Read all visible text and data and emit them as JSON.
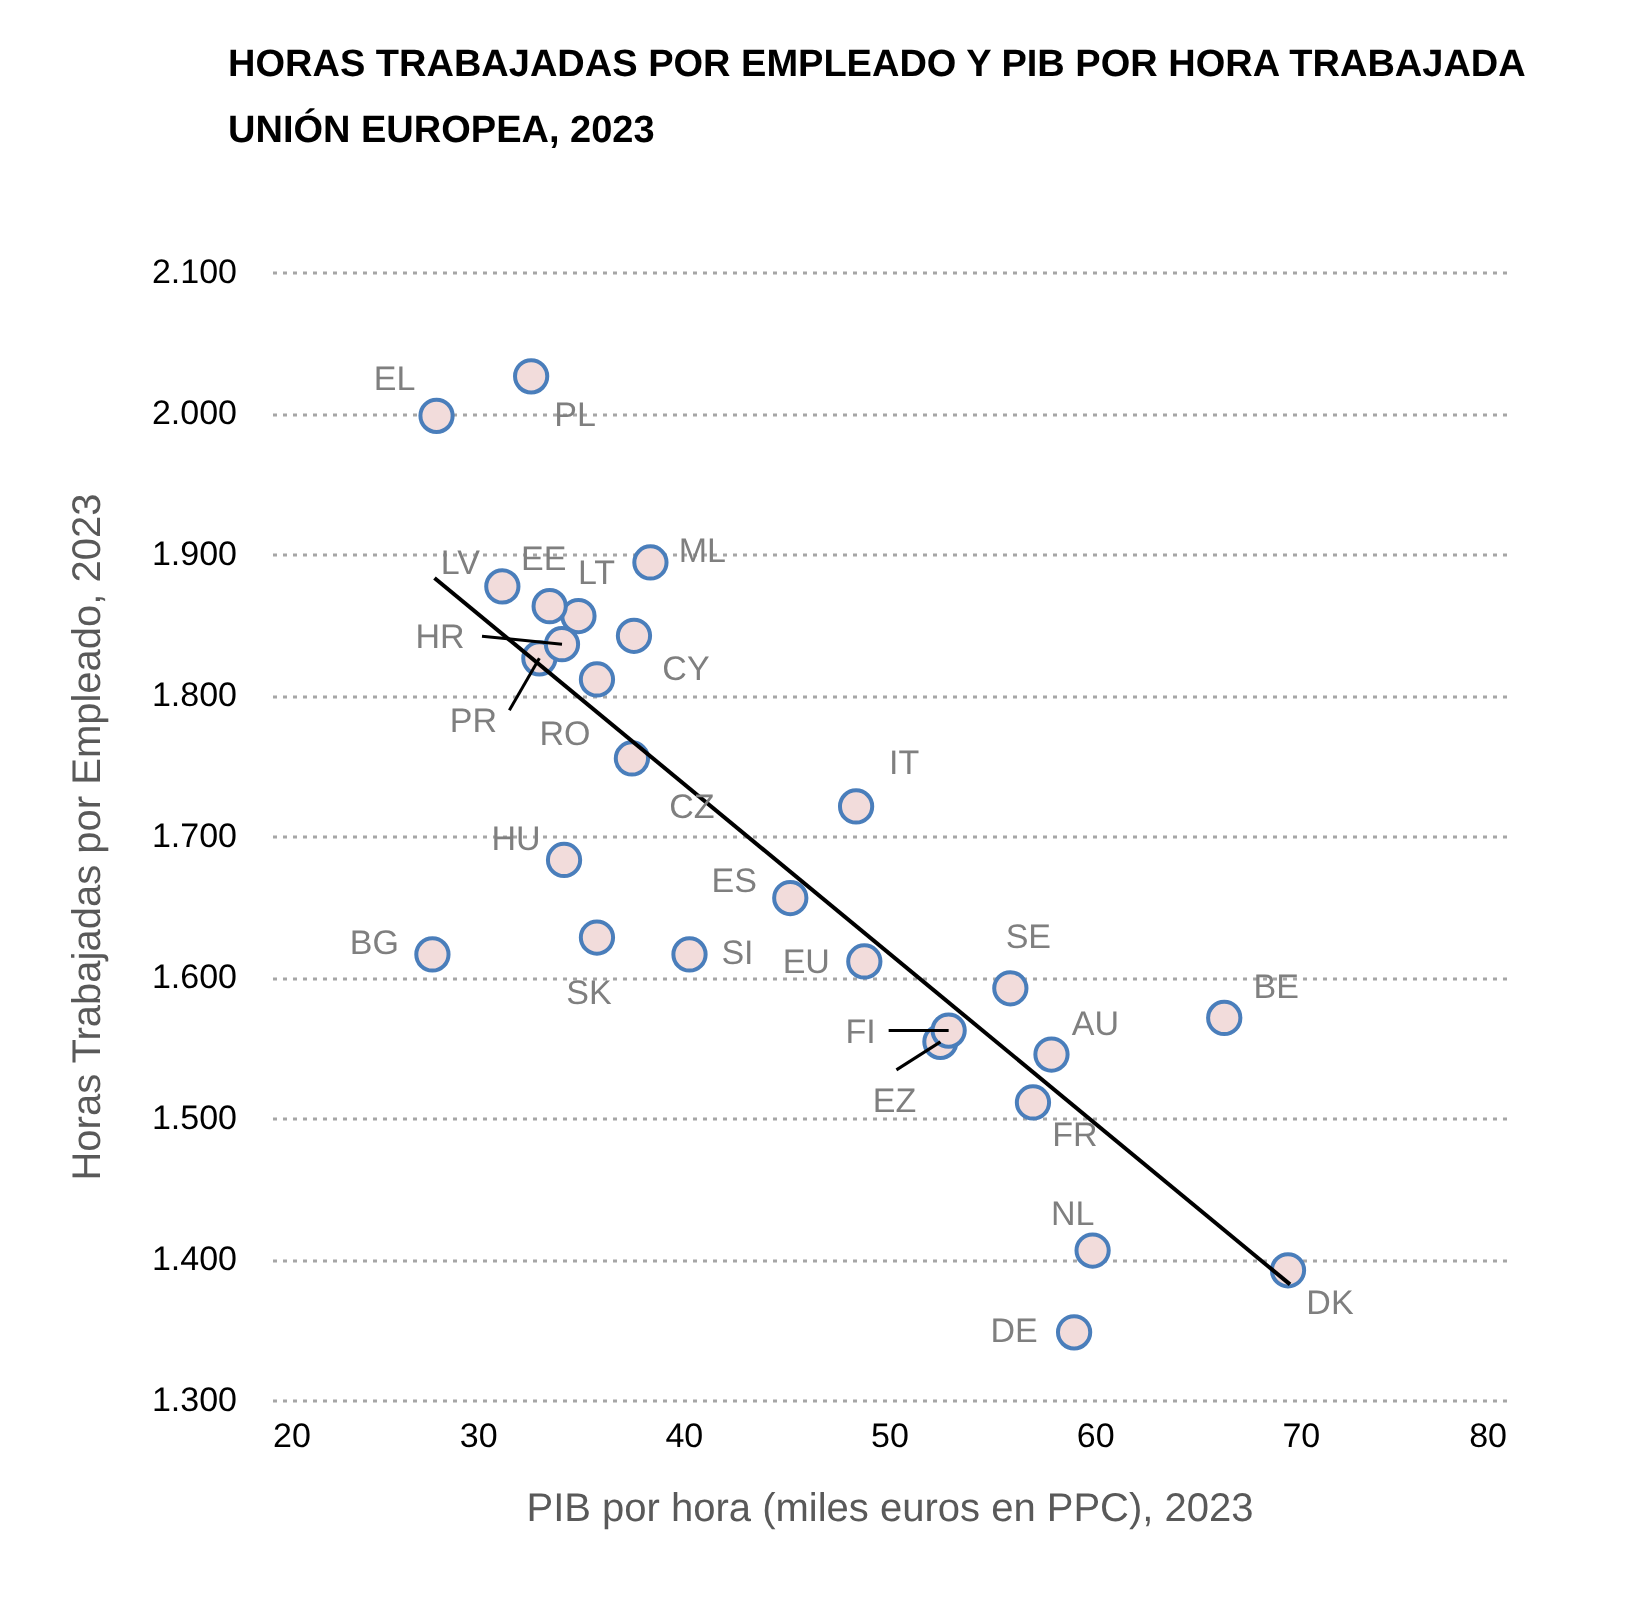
{
  "chart_data": {
    "type": "scatter",
    "title": "HORAS TRABAJADAS POR EMPLEADO Y PIB POR HORA TRABAJADA",
    "subtitle": "UNIÓN EUROPEA, 2023",
    "xlabel": "PIB por hora (miles euros en PPC), 2023",
    "ylabel": "Horas Trabajadas por Empleado, 2023",
    "xlim": [
      20,
      80
    ],
    "xticks": [
      20,
      30,
      40,
      50,
      60,
      70,
      80
    ],
    "ylim": [
      1300,
      2100
    ],
    "yticks": [
      {
        "value": 1300,
        "label": "1.300"
      },
      {
        "value": 1400,
        "label": "1.400"
      },
      {
        "value": 1500,
        "label": "1.500"
      },
      {
        "value": 1600,
        "label": "1.600"
      },
      {
        "value": 1700,
        "label": "1.700"
      },
      {
        "value": 1800,
        "label": "1.800"
      },
      {
        "value": 1900,
        "label": "1.900"
      },
      {
        "value": 2000,
        "label": "2.000"
      },
      {
        "value": 2100,
        "label": "2.100"
      }
    ],
    "grid": "y",
    "series": [
      {
        "color": "#f2dcdb",
        "marker": "circle",
        "x": [
          28.0,
          32.6,
          31.2,
          33.5,
          34.9,
          38.4,
          34.1,
          33.0,
          37.6,
          35.8,
          37.5,
          48.4,
          34.2,
          45.2,
          55.9,
          66.3,
          27.8,
          35.8,
          40.3,
          48.8,
          52.9,
          52.5,
          57.9,
          57.0,
          59.9,
          59.0,
          69.4
        ],
        "values": [
          1998,
          2026,
          1877,
          1863,
          1856,
          1894,
          1836,
          1826,
          1842,
          1811,
          1755,
          1721,
          1683,
          1656,
          1592,
          1571,
          1616,
          1628,
          1616,
          1611,
          1562,
          1554,
          1545,
          1511,
          1406,
          1348,
          1392
        ]
      },
      {
        "type": "line",
        "color": "#000000",
        "marker": "none",
        "x": [
          27.9,
          69.5
        ],
        "values": [
          1883,
          1382
        ]
      }
    ],
    "annotations": [
      {
        "text": "EL",
        "x": 28.0,
        "y": 1998
      },
      {
        "text": "PL",
        "x": 32.6,
        "y": 2026
      },
      {
        "text": "LV",
        "x": 31.2,
        "y": 1877
      },
      {
        "text": "EE",
        "x": 33.5,
        "y": 1863
      },
      {
        "text": "LT",
        "x": 34.9,
        "y": 1856
      },
      {
        "text": "ML",
        "x": 38.4,
        "y": 1894
      },
      {
        "text": "HR",
        "x": 34.1,
        "y": 1836
      },
      {
        "text": "PR",
        "x": 33.0,
        "y": 1826
      },
      {
        "text": "CY",
        "x": 37.6,
        "y": 1842
      },
      {
        "text": "RO",
        "x": 35.8,
        "y": 1811
      },
      {
        "text": "CZ",
        "x": 37.5,
        "y": 1755
      },
      {
        "text": "IT",
        "x": 48.4,
        "y": 1721
      },
      {
        "text": "HU",
        "x": 34.2,
        "y": 1683
      },
      {
        "text": "ES",
        "x": 45.2,
        "y": 1656
      },
      {
        "text": "SE",
        "x": 55.9,
        "y": 1592
      },
      {
        "text": "BE",
        "x": 66.3,
        "y": 1571
      },
      {
        "text": "BG",
        "x": 27.8,
        "y": 1616
      },
      {
        "text": "SK",
        "x": 35.8,
        "y": 1628
      },
      {
        "text": "SI",
        "x": 40.3,
        "y": 1616
      },
      {
        "text": "EU",
        "x": 48.8,
        "y": 1611
      },
      {
        "text": "FI",
        "x": 52.9,
        "y": 1562
      },
      {
        "text": "EZ",
        "x": 52.5,
        "y": 1554
      },
      {
        "text": "AU",
        "x": 57.9,
        "y": 1545
      },
      {
        "text": "FR",
        "x": 57.0,
        "y": 1511
      },
      {
        "text": "NL",
        "x": 59.9,
        "y": 1406
      },
      {
        "text": "DE",
        "x": 59.0,
        "y": 1348
      },
      {
        "text": "DK",
        "x": 69.4,
        "y": 1392
      }
    ]
  }
}
